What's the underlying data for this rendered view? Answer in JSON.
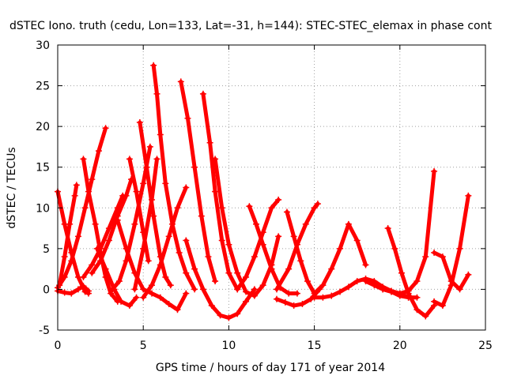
{
  "chart_data": {
    "type": "scatter",
    "title": "dSTEC Iono. truth (cedu, Lon=133, Lat=-31, h=144): STEC-STEC_elemax in phase cont",
    "xlabel": "GPS time / hours of day 171 of year 2014",
    "ylabel": "dSTEC  / TECUs",
    "xlim": [
      0,
      25
    ],
    "ylim": [
      -5,
      30
    ],
    "xticks": [
      0,
      5,
      10,
      15,
      20,
      25
    ],
    "yticks": [
      -5,
      0,
      5,
      10,
      15,
      20,
      25,
      30
    ],
    "grid": true,
    "marker": "+",
    "color": "#ff0000",
    "series": [
      {
        "x": [
          0.0,
          0.4,
          0.8,
          1.2,
          1.6,
          2.0,
          2.4,
          2.8
        ],
        "y": [
          0.2,
          1.5,
          3.5,
          6.5,
          10.0,
          13.5,
          17.0,
          19.8
        ]
      },
      {
        "x": [
          0.0,
          0.4,
          0.8,
          1.2,
          1.6,
          1.8
        ],
        "y": [
          12.0,
          8.0,
          4.5,
          1.5,
          -0.3,
          -0.5
        ]
      },
      {
        "x": [
          0.1,
          0.4,
          0.7,
          1.0,
          1.1
        ],
        "y": [
          0.5,
          4.0,
          8.0,
          11.5,
          12.8
        ]
      },
      {
        "x": [
          0.0,
          0.4,
          0.8,
          1.2,
          1.5,
          1.8
        ],
        "y": [
          -0.2,
          -0.4,
          -0.5,
          0.0,
          0.4,
          -0.2
        ]
      },
      {
        "x": [
          1.5,
          1.8,
          2.2,
          2.5,
          2.8,
          3.1,
          3.5
        ],
        "y": [
          16.0,
          12.0,
          8.0,
          4.5,
          1.5,
          -0.5,
          -1.5
        ]
      },
      {
        "x": [
          1.5,
          2.0,
          2.5,
          3.0,
          3.5,
          3.8
        ],
        "y": [
          1.5,
          3.0,
          5.0,
          7.5,
          10.0,
          11.5
        ]
      },
      {
        "x": [
          2.0,
          2.5,
          3.0,
          3.5,
          4.0,
          4.3
        ],
        "y": [
          2.0,
          3.5,
          6.0,
          9.0,
          11.5,
          13.5
        ]
      },
      {
        "x": [
          2.3,
          2.8,
          3.3,
          3.7,
          4.2,
          4.6
        ],
        "y": [
          5.0,
          2.5,
          0.0,
          -1.5,
          -2.0,
          -1.0
        ]
      },
      {
        "x": [
          3.2,
          3.6,
          4.0,
          4.5,
          5.0,
          5.4
        ],
        "y": [
          0.0,
          1.0,
          3.5,
          8.0,
          13.0,
          17.5
        ]
      },
      {
        "x": [
          3.5,
          4.0,
          4.5,
          5.0,
          5.5,
          6.0,
          6.5,
          7.0,
          7.5
        ],
        "y": [
          8.5,
          5.0,
          2.0,
          0.0,
          -0.5,
          -1.0,
          -1.8,
          -2.5,
          -0.5
        ]
      },
      {
        "x": [
          4.2,
          4.6,
          5.0,
          5.3
        ],
        "y": [
          16.0,
          12.0,
          7.0,
          3.5
        ]
      },
      {
        "x": [
          4.5,
          5.0,
          5.5,
          5.8
        ],
        "y": [
          0.0,
          5.0,
          11.0,
          16.0
        ]
      },
      {
        "x": [
          4.8,
          5.2,
          5.6,
          6.0,
          6.3,
          6.6
        ],
        "y": [
          20.5,
          15.0,
          9.0,
          4.0,
          1.5,
          0.5
        ]
      },
      {
        "x": [
          5.0,
          5.5,
          6.0,
          6.5,
          7.0,
          7.5
        ],
        "y": [
          -1.0,
          0.5,
          3.0,
          6.5,
          10.0,
          12.5
        ]
      },
      {
        "x": [
          5.6,
          5.8,
          6.0,
          6.3,
          6.7,
          7.1,
          7.5,
          8.0
        ],
        "y": [
          27.5,
          24.0,
          19.0,
          13.0,
          8.0,
          4.5,
          2.0,
          0.0
        ]
      },
      {
        "x": [
          7.2,
          7.6,
          8.0,
          8.4,
          8.8,
          9.2
        ],
        "y": [
          25.5,
          21.0,
          15.0,
          9.0,
          4.0,
          1.0
        ]
      },
      {
        "x": [
          8.5,
          8.9,
          9.2,
          9.6,
          10.0,
          10.5
        ],
        "y": [
          24.0,
          18.0,
          12.0,
          6.0,
          2.0,
          0.0
        ]
      },
      {
        "x": [
          7.5,
          8.0,
          8.5,
          9.0,
          9.5,
          10.0,
          10.5,
          11.0,
          11.5
        ],
        "y": [
          6.0,
          2.5,
          0.0,
          -2.0,
          -3.2,
          -3.5,
          -3.0,
          -1.5,
          0.0
        ]
      },
      {
        "x": [
          9.2,
          9.6,
          10.0,
          10.5,
          11.0,
          11.5,
          12.0,
          12.5,
          12.9
        ],
        "y": [
          16.0,
          10.0,
          5.5,
          2.0,
          -0.3,
          -0.8,
          0.5,
          3.0,
          6.5
        ]
      },
      {
        "x": [
          11.2,
          11.6,
          12.0,
          12.5,
          13.0,
          13.5,
          14.0
        ],
        "y": [
          10.2,
          8.0,
          5.5,
          2.5,
          0.2,
          -0.5,
          -0.5
        ]
      },
      {
        "x": [
          10.5,
          11.0,
          11.5,
          12.0,
          12.5,
          12.9
        ],
        "y": [
          0.0,
          1.5,
          4.0,
          7.0,
          10.0,
          11.0
        ]
      },
      {
        "x": [
          13.4,
          13.8,
          14.2,
          14.6,
          15.0,
          15.5,
          16.0,
          16.5,
          17.0,
          17.5,
          18.0
        ],
        "y": [
          9.5,
          6.5,
          3.5,
          1.0,
          -0.5,
          0.5,
          2.5,
          5.0,
          8.0,
          6.0,
          3.0
        ]
      },
      {
        "x": [
          12.8,
          13.5,
          14.0,
          14.5,
          15.0,
          15.2
        ],
        "y": [
          0.0,
          2.5,
          5.5,
          8.0,
          10.0,
          10.5
        ]
      },
      {
        "x": [
          12.8,
          13.3,
          13.8,
          14.3,
          14.8,
          15.3
        ],
        "y": [
          -1.2,
          -1.6,
          -2.0,
          -1.8,
          -1.2,
          0.0
        ]
      },
      {
        "x": [
          15.0,
          15.5,
          16.0,
          16.5,
          17.0,
          17.5,
          18.0,
          18.5,
          19.0,
          19.5,
          20.0,
          20.5
        ],
        "y": [
          -1.0,
          -1.0,
          -0.8,
          -0.3,
          0.3,
          1.0,
          1.3,
          1.0,
          0.3,
          -0.2,
          -0.5,
          -1.0
        ]
      },
      {
        "x": [
          19.3,
          19.7,
          20.1,
          20.5,
          21.0,
          21.5,
          22.0
        ],
        "y": [
          7.5,
          5.0,
          2.0,
          -0.5,
          -2.5,
          -3.3,
          -2.0
        ]
      },
      {
        "x": [
          19.0,
          19.5,
          20.0,
          20.5,
          21.0,
          21.5,
          22.0
        ],
        "y": [
          0.0,
          -0.3,
          -0.5,
          -0.2,
          1.0,
          4.0,
          14.5
        ]
      },
      {
        "x": [
          22.0,
          22.5,
          23.0,
          23.5,
          24.0
        ],
        "y": [
          4.5,
          4.0,
          1.0,
          0.0,
          1.8
        ]
      },
      {
        "x": [
          22.0,
          22.5,
          23.0,
          23.5,
          24.0
        ],
        "y": [
          -1.5,
          -2.0,
          0.5,
          5.0,
          11.5
        ]
      },
      {
        "x": [
          18.0,
          18.5,
          19.0,
          19.5,
          20.0,
          20.5,
          21.0
        ],
        "y": [
          1.0,
          0.5,
          0.0,
          -0.3,
          -0.8,
          -1.0,
          -1.0
        ]
      }
    ]
  }
}
